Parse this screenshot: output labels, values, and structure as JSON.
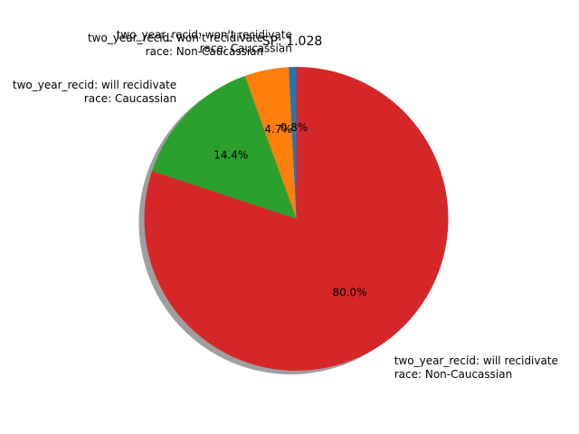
{
  "chart_data": {
    "type": "pie",
    "title": "SP: 1.028",
    "slices": [
      {
        "label": "two_year_recid: won't recidivate\nrace: Caucassian",
        "value": 0.8,
        "pct_label": "0.8%",
        "color": "#1f77b4"
      },
      {
        "label": "two_year_recid: won't recidivate\nrace: Non-Caucassian",
        "value": 4.7,
        "pct_label": "4.7%",
        "color": "#ff7f0e"
      },
      {
        "label": "two_year_recid: will recidivate\nrace: Caucassian",
        "value": 14.4,
        "pct_label": "14.4%",
        "color": "#2ca02c"
      },
      {
        "label": "two_year_recid: will recidivate\nrace: Non-Caucassian",
        "value": 80.0,
        "pct_label": "80.0%",
        "color": "#d62728"
      }
    ],
    "start_angle_deg": 90,
    "counterclockwise": true,
    "shadow": true
  }
}
